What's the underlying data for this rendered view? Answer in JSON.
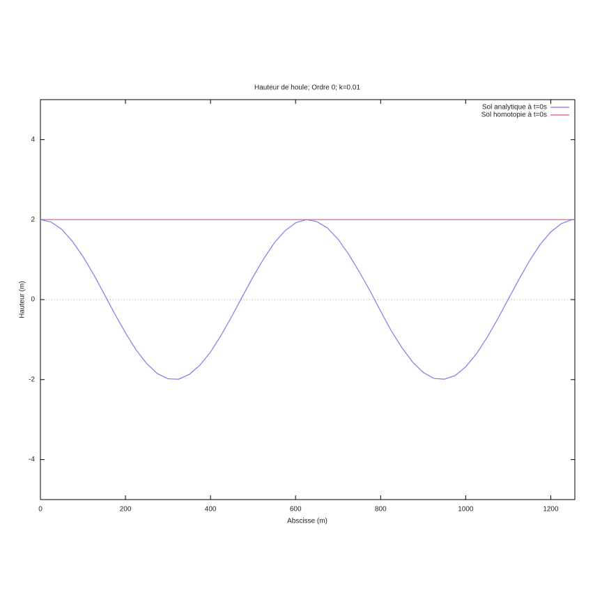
{
  "chart_data": {
    "type": "line",
    "title": "Hauteur de houle; Ordre 0; k=0.01",
    "x_label": "Abscisse (m)",
    "y_label": "Hauteur (m)",
    "x": [
      0,
      25,
      50,
      75,
      100,
      125,
      150,
      175,
      200,
      225,
      250,
      275,
      300,
      325,
      350,
      375,
      400,
      425,
      450,
      475,
      500,
      525,
      550,
      575,
      600,
      625,
      650,
      675,
      700,
      725,
      750,
      775,
      800,
      825,
      850,
      875,
      900,
      925,
      950,
      975,
      1000,
      1025,
      1050,
      1075,
      1100,
      1125,
      1150,
      1175,
      1200,
      1225,
      1250,
      1256.6
    ],
    "series": [
      {
        "name": "Sol analytique à t=0s",
        "color": "#7b7bf0",
        "values": [
          2,
          1.94,
          1.76,
          1.46,
          1.08,
          0.63,
          0.14,
          -0.36,
          -0.83,
          -1.26,
          -1.6,
          -1.85,
          -1.98,
          -1.99,
          -1.87,
          -1.64,
          -1.31,
          -0.89,
          -0.42,
          0.08,
          0.57,
          1.02,
          1.42,
          1.72,
          1.92,
          2,
          1.95,
          1.79,
          1.51,
          1.13,
          0.69,
          0.22,
          -0.29,
          -0.78,
          -1.2,
          -1.56,
          -1.82,
          -1.97,
          -1.99,
          -1.9,
          -1.68,
          -1.36,
          -0.95,
          -0.49,
          0.01,
          0.5,
          0.97,
          1.38,
          1.69,
          1.9,
          2,
          2
        ]
      },
      {
        "name": "Sol homotopie à t=0s",
        "color": "#e8506a",
        "values": [
          2,
          2,
          2,
          2,
          2,
          2,
          2,
          2,
          2,
          2,
          2,
          2,
          2,
          2,
          2,
          2,
          2,
          2,
          2,
          2,
          2,
          2,
          2,
          2,
          2,
          2,
          2,
          2,
          2,
          2,
          2,
          2,
          2,
          2,
          2,
          2,
          2,
          2,
          2,
          2,
          2,
          2,
          2,
          2,
          2,
          2,
          2,
          2,
          2,
          2,
          2,
          2
        ]
      }
    ],
    "xlim": [
      0,
      1256.6
    ],
    "ylim": [
      -5,
      5
    ],
    "xticks": [
      0,
      200,
      400,
      600,
      800,
      1000,
      1200
    ],
    "yticks": [
      -4,
      -2,
      0,
      2,
      4
    ],
    "zero_line": true,
    "legend": "top-right"
  }
}
